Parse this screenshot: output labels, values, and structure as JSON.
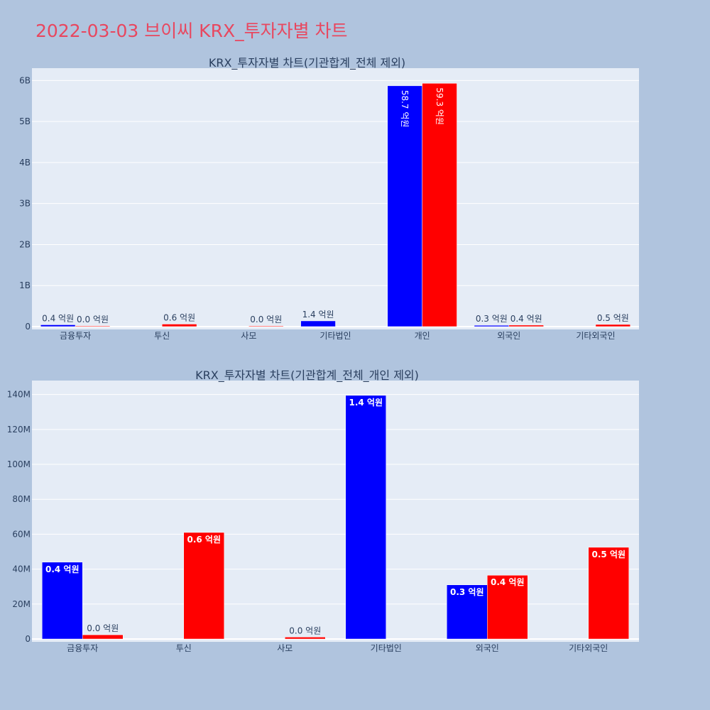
{
  "page": {
    "title": "2022-03-03 브이씨 KRX_투자자별 차트"
  },
  "colors": {
    "buy": "#0000ff",
    "sell": "#ff0000",
    "plot_bg": "#e5ecf6",
    "page_bg": "#b0c4de",
    "title": "#e8475f"
  },
  "chart_data": [
    {
      "type": "bar",
      "title": "KRX_투자자별 차트(기관합계_전체 제외)",
      "categories": [
        "금융투자",
        "투신",
        "사모",
        "기타법인",
        "개인",
        "외국인",
        "기타외국인"
      ],
      "ylim": [
        0,
        6300000000
      ],
      "yticks": [
        0,
        1000000000,
        2000000000,
        3000000000,
        4000000000,
        5000000000,
        6000000000
      ],
      "ytick_labels": [
        "0",
        "1B",
        "2B",
        "3B",
        "4B",
        "5B",
        "6B"
      ],
      "grid": true,
      "series": [
        {
          "color": "#0000ff",
          "values": [
            44000000,
            null,
            null,
            139000000,
            5870000000,
            31000000,
            null
          ],
          "labels": [
            "0.4 억원",
            null,
            null,
            "1.4 억원",
            "58.7 억원",
            "0.3 억원",
            null
          ]
        },
        {
          "color": "#ff0000",
          "values": [
            2000000,
            61000000,
            1000000,
            null,
            5930000000,
            36000000,
            52000000
          ],
          "labels": [
            "0.0 억원",
            "0.6 억원",
            "0.0 억원",
            null,
            "59.3 억원",
            "0.4 억원",
            "0.5 억원"
          ]
        }
      ]
    },
    {
      "type": "bar",
      "title": "KRX_투자자별 차트(기관합계_전체_개인 제외)",
      "categories": [
        "금융투자",
        "투신",
        "사모",
        "기타법인",
        "외국인",
        "기타외국인"
      ],
      "ylim": [
        0,
        148000000
      ],
      "yticks": [
        0,
        20000000,
        40000000,
        60000000,
        80000000,
        100000000,
        120000000,
        140000000
      ],
      "ytick_labels": [
        "0",
        "20M",
        "40M",
        "60M",
        "80M",
        "100M",
        "120M",
        "140M"
      ],
      "grid": true,
      "series": [
        {
          "color": "#0000ff",
          "values": [
            44000000,
            null,
            null,
            139500000,
            31000000,
            null
          ],
          "labels": [
            "0.4 억원",
            null,
            null,
            "1.4 억원",
            "0.3 억원",
            null
          ]
        },
        {
          "color": "#ff0000",
          "values": [
            2400000,
            61000000,
            1100000,
            null,
            36500000,
            52500000
          ],
          "labels": [
            "0.0 억원",
            "0.6 억원",
            "0.0 억원",
            null,
            "0.4 억원",
            "0.5 억원"
          ]
        }
      ]
    }
  ]
}
